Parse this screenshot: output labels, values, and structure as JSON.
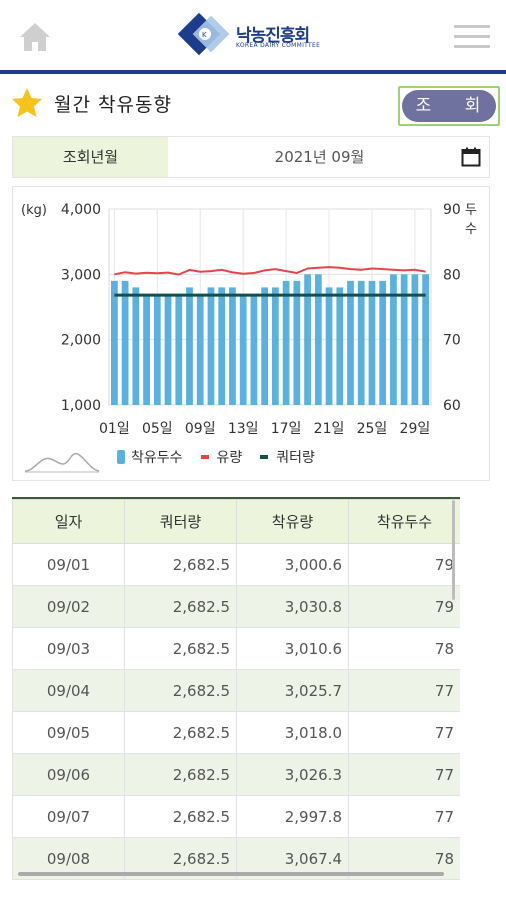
{
  "header": {
    "logo_text": "낙농진흥회",
    "logo_sub": "KOREA DAIRY COMMITTEE"
  },
  "title": "월간 착유동향",
  "search_button": "조 회",
  "date_filter": {
    "label": "조회년월",
    "value": "2021년  09월"
  },
  "chart_data": {
    "type": "bar",
    "left_unit": "(kg)",
    "right_unit": "두수",
    "left_ticks": [
      "4,000",
      "3,000",
      "2,000",
      "1,000"
    ],
    "right_ticks": [
      "90",
      "80",
      "70",
      "60"
    ],
    "ylim_left": [
      1000,
      4000
    ],
    "ylim_right": [
      60,
      90
    ],
    "x_tick_labels": [
      "01일",
      "05일",
      "09일",
      "13일",
      "17일",
      "21일",
      "25일",
      "29일"
    ],
    "days": [
      1,
      2,
      3,
      4,
      5,
      6,
      7,
      8,
      9,
      10,
      11,
      12,
      13,
      14,
      15,
      16,
      17,
      18,
      19,
      20,
      21,
      22,
      23,
      24,
      25,
      26,
      27,
      28,
      29,
      30
    ],
    "series": [
      {
        "name": "착유두수",
        "axis": "right",
        "color": "#5ab0de",
        "values": [
          79,
          79,
          78,
          77,
          77,
          77,
          77,
          78,
          77,
          78,
          78,
          78,
          77,
          77,
          78,
          78,
          79,
          79,
          80,
          80,
          78,
          78,
          79,
          79,
          79,
          79,
          80,
          80,
          80,
          80
        ]
      },
      {
        "name": "유량",
        "axis": "left",
        "color": "#e6444c",
        "values": [
          3000.6,
          3030.8,
          3010.6,
          3025.7,
          3018.0,
          3026.3,
          2997.8,
          3067.4,
          3040,
          3050,
          3070,
          3030,
          3010,
          3020,
          3060,
          3080,
          3050,
          3020,
          3090,
          3100,
          3110,
          3100,
          3080,
          3070,
          3090,
          3080,
          3070,
          3060,
          3070,
          3040
        ]
      },
      {
        "name": "쿼터량",
        "axis": "left",
        "color": "#12514b",
        "values": [
          2682.5,
          2682.5,
          2682.5,
          2682.5,
          2682.5,
          2682.5,
          2682.5,
          2682.5,
          2682.5,
          2682.5,
          2682.5,
          2682.5,
          2682.5,
          2682.5,
          2682.5,
          2682.5,
          2682.5,
          2682.5,
          2682.5,
          2682.5,
          2682.5,
          2682.5,
          2682.5,
          2682.5,
          2682.5,
          2682.5,
          2682.5,
          2682.5,
          2682.5,
          2682.5
        ]
      }
    ]
  },
  "table": {
    "headers": [
      "일자",
      "쿼터량",
      "착유량",
      "착유두수"
    ],
    "rows": [
      [
        "09/01",
        "2,682.5",
        "3,000.6",
        "79"
      ],
      [
        "09/02",
        "2,682.5",
        "3,030.8",
        "79"
      ],
      [
        "09/03",
        "2,682.5",
        "3,010.6",
        "78"
      ],
      [
        "09/04",
        "2,682.5",
        "3,025.7",
        "77"
      ],
      [
        "09/05",
        "2,682.5",
        "3,018.0",
        "77"
      ],
      [
        "09/06",
        "2,682.5",
        "3,026.3",
        "77"
      ],
      [
        "09/07",
        "2,682.5",
        "2,997.8",
        "77"
      ],
      [
        "09/08",
        "2,682.5",
        "3,067.4",
        "78"
      ]
    ]
  }
}
